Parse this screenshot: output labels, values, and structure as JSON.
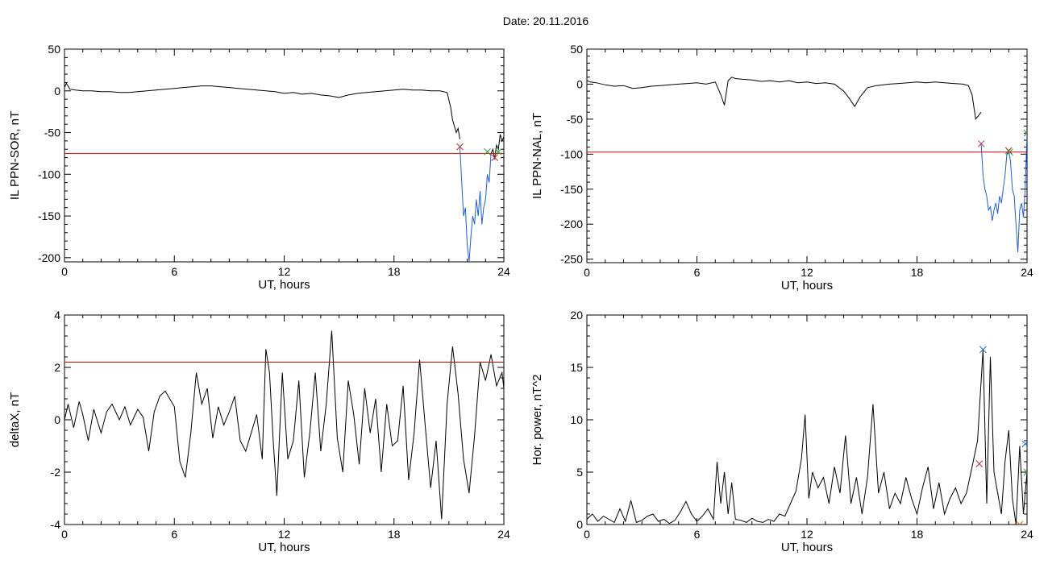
{
  "page": {
    "title": "Date:  20.11.2016"
  },
  "chart_data": [
    {
      "type": "line",
      "title": "",
      "xlabel": "UT, hours",
      "ylabel": "IL PPN-SOR, nT",
      "xlim": [
        0,
        24
      ],
      "ylim": [
        -205,
        50
      ],
      "xticks": [
        0,
        6,
        12,
        18,
        24
      ],
      "yticks": [
        50,
        0,
        -50,
        -100,
        -150,
        -200
      ],
      "threshold": -75,
      "threshold_color": "#e00000",
      "series": [
        {
          "color": "#000000",
          "x": [
            0,
            0.1,
            0.3,
            0.6,
            1,
            1.5,
            2,
            2.5,
            3,
            3.5,
            4,
            4.5,
            5,
            5.5,
            6,
            6.5,
            7,
            7.5,
            8,
            8.5,
            9,
            9.5,
            10,
            10.5,
            11,
            11.5,
            12,
            12.5,
            13,
            13.5,
            14,
            14.5,
            15,
            15.5,
            16,
            16.5,
            17,
            17.5,
            18,
            18.5,
            19,
            19.5,
            20,
            20.5,
            20.9,
            21.1,
            21.2,
            21.4,
            21.5,
            21.6
          ],
          "y": [
            4,
            9,
            2,
            1,
            0,
            0,
            -1,
            -1,
            -2,
            -2,
            -1,
            0,
            1,
            2,
            3,
            4,
            5,
            6,
            6,
            5,
            4,
            3,
            2,
            1,
            0,
            -1,
            -3,
            -2,
            -4,
            -3,
            -5,
            -6,
            -8,
            -5,
            -3,
            -2,
            -1,
            0,
            1,
            2,
            1,
            1,
            0,
            0,
            -2,
            -20,
            -35,
            -50,
            -45,
            -58
          ]
        },
        {
          "color": "#1f5fd0",
          "x": [
            21.6,
            21.7,
            21.8,
            21.9,
            22,
            22.1,
            22.2,
            22.3,
            22.4,
            22.5,
            22.6,
            22.7,
            22.8,
            22.9,
            23,
            23.1,
            23.2,
            23.3
          ],
          "y": [
            -67,
            -110,
            -150,
            -140,
            -185,
            -205,
            -175,
            -150,
            -160,
            -130,
            -150,
            -120,
            -160,
            -140,
            -130,
            -100,
            -110,
            -75
          ]
        },
        {
          "color": "#000000",
          "x": [
            23.3,
            23.4,
            23.5,
            23.6,
            23.7,
            23.8,
            23.9,
            24
          ],
          "y": [
            -75,
            -70,
            -82,
            -65,
            -70,
            -52,
            -60,
            -55
          ]
        }
      ],
      "markers": [
        {
          "x": 21.6,
          "y": -67,
          "color": "#c03030"
        },
        {
          "x": 23.1,
          "y": -73,
          "color": "#2a9d2a"
        },
        {
          "x": 23.5,
          "y": -80,
          "color": "#c03030"
        },
        {
          "x": 23.7,
          "y": -73,
          "color": "#2a9d2a"
        }
      ]
    },
    {
      "type": "line",
      "title": "",
      "xlabel": "UT, hours",
      "ylabel": "IL PPN-NAL, nT",
      "xlim": [
        0,
        24
      ],
      "ylim": [
        -255,
        50
      ],
      "xticks": [
        0,
        6,
        12,
        18,
        24
      ],
      "yticks": [
        50,
        0,
        -50,
        -100,
        -150,
        -200,
        -250
      ],
      "threshold": -97,
      "threshold_color": "#e00000",
      "series": [
        {
          "color": "#000000",
          "x": [
            0,
            0.2,
            0.5,
            1,
            1.5,
            2,
            2.5,
            3,
            3.5,
            4,
            4.5,
            5,
            5.5,
            6,
            6.5,
            7,
            7.3,
            7.5,
            7.7,
            7.9,
            8.1,
            8.5,
            9,
            9.5,
            10,
            10.5,
            11,
            11.5,
            12,
            12.5,
            13,
            13.5,
            14,
            14.3,
            14.6,
            14.9,
            15.3,
            15.8,
            16.5,
            17,
            17.5,
            18,
            18.5,
            19,
            19.5,
            20,
            20.5,
            20.8,
            21,
            21.2,
            21.5
          ],
          "y": [
            5,
            3,
            2,
            -1,
            -3,
            -2,
            -6,
            -5,
            -3,
            -2,
            -1,
            0,
            1,
            2,
            0,
            3,
            -15,
            -30,
            5,
            10,
            8,
            7,
            6,
            4,
            5,
            3,
            5,
            2,
            3,
            1,
            2,
            0,
            -10,
            -20,
            -32,
            -18,
            -5,
            -2,
            0,
            1,
            2,
            3,
            2,
            3,
            2,
            1,
            0,
            -2,
            -15,
            -50,
            -40
          ]
        },
        {
          "color": "#1f5fd0",
          "x": [
            21.5,
            21.6,
            21.7,
            21.8,
            21.9,
            22,
            22.1,
            22.2,
            22.3,
            22.4,
            22.5,
            22.6,
            22.7,
            22.8,
            22.9,
            23,
            23.1,
            23.2,
            23.3,
            23.4,
            23.5,
            23.6,
            23.7,
            23.8,
            23.9,
            24
          ],
          "y": [
            -85,
            -130,
            -150,
            -160,
            -180,
            -175,
            -195,
            -180,
            -170,
            -185,
            -160,
            -170,
            -150,
            -130,
            -100,
            -95,
            -110,
            -150,
            -160,
            -200,
            -240,
            -180,
            -170,
            -190,
            -150,
            -70
          ]
        }
      ],
      "markers": [
        {
          "x": 21.5,
          "y": -85,
          "color": "#c03030"
        },
        {
          "x": 23.0,
          "y": -95,
          "color": "#c03030"
        },
        {
          "x": 23.05,
          "y": -97,
          "color": "#2a9d2a"
        },
        {
          "x": 24,
          "y": -70,
          "color": "#2a9d2a"
        }
      ]
    },
    {
      "type": "line",
      "title": "",
      "xlabel": "UT, hours",
      "ylabel": "deltaX, nT",
      "xlim": [
        0,
        24
      ],
      "ylim": [
        -4,
        4
      ],
      "xticks": [
        0,
        6,
        12,
        18,
        24
      ],
      "yticks": [
        4,
        2,
        0,
        -2,
        -4
      ],
      "threshold": 2.2,
      "threshold_color": "#e00000",
      "series": [
        {
          "color": "#000000",
          "x": [
            0,
            0.2,
            0.5,
            0.8,
            1,
            1.3,
            1.6,
            2,
            2.3,
            2.6,
            3,
            3.3,
            3.6,
            4,
            4.3,
            4.6,
            4.9,
            5.2,
            5.5,
            6,
            6.3,
            6.6,
            6.9,
            7.2,
            7.5,
            7.8,
            8.1,
            8.4,
            8.7,
            9,
            9.3,
            9.6,
            9.9,
            10.2,
            10.5,
            10.8,
            11,
            11.2,
            11.4,
            11.6,
            11.9,
            12.2,
            12.5,
            12.8,
            13.1,
            13.4,
            13.7,
            14,
            14.3,
            14.6,
            14.9,
            15.2,
            15.5,
            15.8,
            16.1,
            16.4,
            16.7,
            17,
            17.3,
            17.6,
            17.9,
            18.2,
            18.5,
            18.8,
            19.1,
            19.4,
            19.7,
            20,
            20.3,
            20.6,
            20.9,
            21.2,
            21.5,
            21.8,
            22.1,
            22.4,
            22.7,
            23,
            23.3,
            23.6,
            23.9,
            24
          ],
          "y": [
            0,
            0.6,
            -0.3,
            0.7,
            0.2,
            -0.8,
            0.4,
            -0.5,
            0.3,
            0.6,
            0,
            0.5,
            -0.2,
            0.4,
            0.1,
            -1.2,
            0.3,
            0.9,
            1.1,
            0.5,
            -1.6,
            -2.2,
            -0.5,
            1.8,
            0.6,
            1.2,
            -0.7,
            0.5,
            -0.2,
            0.3,
            0.9,
            -0.8,
            -1.2,
            -0.5,
            0.2,
            -1.5,
            2.7,
            1.8,
            -0.8,
            -2.9,
            1.8,
            -1.5,
            -0.8,
            1.5,
            -2.2,
            -0.5,
            1.8,
            -1.2,
            0.6,
            3.4,
            -0.7,
            -2.0,
            1.5,
            0.2,
            -1.7,
            1.2,
            -0.5,
            0.8,
            -2.0,
            0.6,
            -1.0,
            -0.8,
            1.3,
            -2.3,
            -0.5,
            2.3,
            -0.2,
            -2.6,
            -0.8,
            -3.8,
            0.6,
            2.8,
            1.0,
            -1.5,
            -2.8,
            -0.6,
            2.2,
            1.5,
            2.5,
            1.3,
            1.8,
            1.2
          ]
        }
      ],
      "markers": []
    },
    {
      "type": "line",
      "title": "",
      "xlabel": "UT, hours",
      "ylabel": "Hor. power, nT^2",
      "xlim": [
        0,
        24
      ],
      "ylim": [
        0,
        20
      ],
      "xticks": [
        0,
        6,
        12,
        18,
        24
      ],
      "yticks": [
        20,
        15,
        10,
        5,
        0
      ],
      "threshold": null,
      "series": [
        {
          "color": "#000000",
          "x": [
            0,
            0.3,
            0.6,
            0.9,
            1.2,
            1.5,
            1.8,
            2.1,
            2.4,
            2.7,
            3,
            3.3,
            3.6,
            3.9,
            4.2,
            4.5,
            4.8,
            5.1,
            5.4,
            5.7,
            6,
            6.3,
            6.6,
            6.9,
            7.1,
            7.3,
            7.5,
            7.7,
            7.9,
            8.1,
            8.4,
            8.7,
            9,
            9.3,
            9.6,
            9.9,
            10.2,
            10.5,
            10.8,
            11.1,
            11.4,
            11.7,
            11.9,
            12.1,
            12.3,
            12.6,
            12.9,
            13.2,
            13.5,
            13.8,
            14.1,
            14.4,
            14.7,
            15,
            15.3,
            15.6,
            15.9,
            16.2,
            16.5,
            16.8,
            17.1,
            17.4,
            17.7,
            18,
            18.3,
            18.6,
            18.9,
            19.2,
            19.5,
            19.8,
            20.1,
            20.4,
            20.7,
            21,
            21.3,
            21.6,
            21.8,
            22,
            22.2,
            22.4,
            22.6,
            22.8,
            23,
            23.2,
            23.4,
            23.6,
            23.8,
            24
          ],
          "y": [
            0.5,
            1.0,
            0.3,
            0.8,
            0.5,
            0.2,
            1.5,
            0.3,
            2.3,
            0.2,
            0.4,
            0.8,
            1.0,
            0.3,
            0.5,
            0.1,
            0.4,
            1.2,
            2.2,
            1.0,
            0.3,
            0.8,
            1.5,
            0.5,
            6.0,
            2.0,
            5.0,
            1.0,
            4.0,
            0.5,
            0.4,
            0.2,
            0.6,
            0.3,
            0.2,
            0.5,
            0.3,
            1.0,
            0.8,
            2.0,
            3.2,
            6.3,
            10.5,
            2.5,
            5.0,
            3.5,
            4.5,
            2.0,
            5.5,
            3.0,
            8.5,
            2.0,
            4.5,
            1.0,
            4.5,
            11.5,
            3.0,
            5.0,
            1.5,
            3.0,
            2.0,
            4.5,
            2.5,
            1.0,
            3.5,
            5.5,
            1.5,
            4.0,
            1.0,
            2.5,
            3.5,
            2.0,
            3.0,
            5.5,
            8.0,
            16.7,
            2.0,
            16.0,
            5.0,
            3.0,
            1.0,
            6.0,
            9.0,
            2.5,
            0.0,
            7.5,
            1.0,
            5.0
          ]
        }
      ],
      "markers": [
        {
          "x": 21.6,
          "y": 16.7,
          "color": "#1f6fd0"
        },
        {
          "x": 21.4,
          "y": 5.8,
          "color": "#c03030"
        },
        {
          "x": 23.6,
          "y": 0.0,
          "color": "#d06a1f"
        },
        {
          "x": 23.9,
          "y": 7.7,
          "color": "#1f6fd0"
        },
        {
          "x": 24.0,
          "y": 5.0,
          "color": "#2a9d2a"
        }
      ]
    }
  ]
}
